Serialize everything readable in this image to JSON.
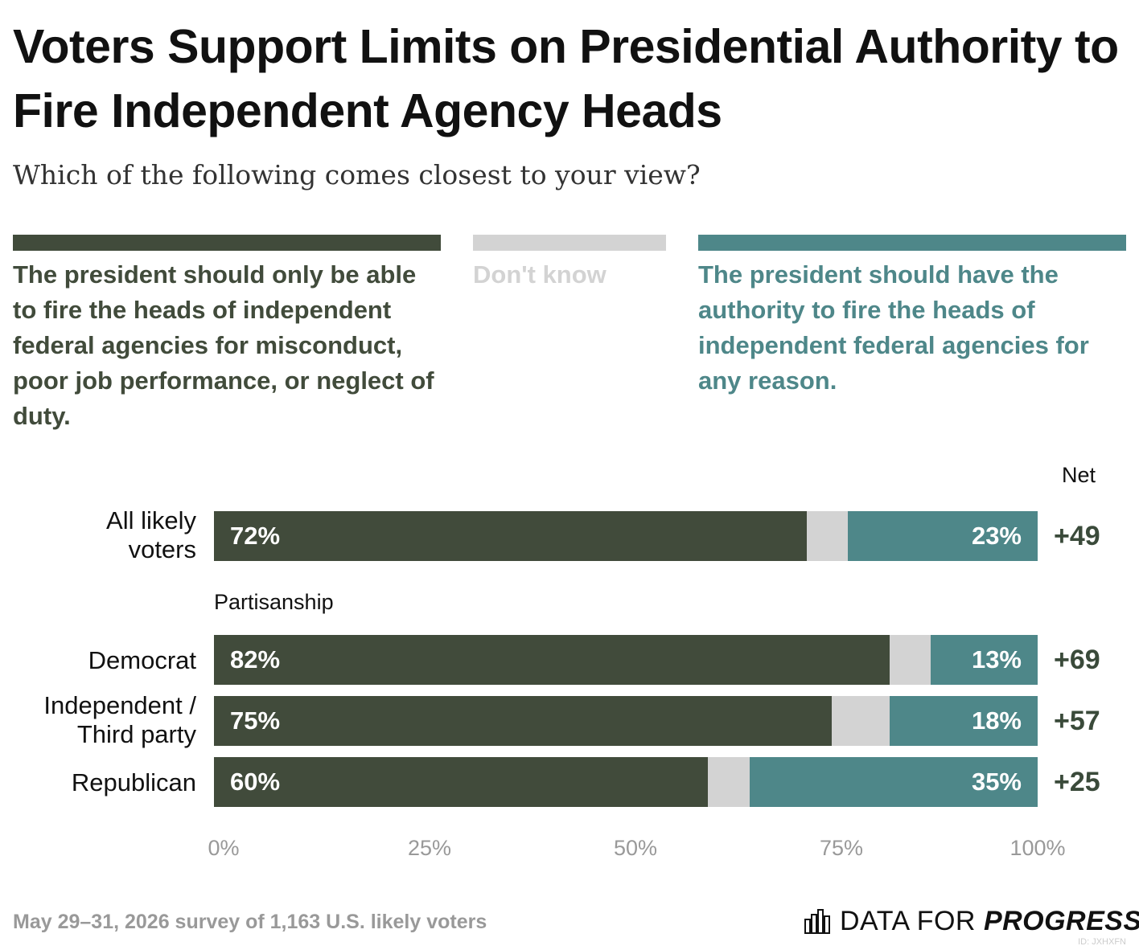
{
  "title": "Voters Support Limits on Presidential Authority to Fire Independent Agency Heads",
  "subtitle": "Which of the following comes closest to your view?",
  "footer": "May 29–31, 2026 survey of 1,163 U.S. likely voters",
  "brand": {
    "prefix": "DATA FOR",
    "suffix": "PROGRESS"
  },
  "id_tag": "ID: JXHXFN",
  "net_header": "Net",
  "section_label": "Partisanship",
  "colors": {
    "limit": "#414b3b",
    "dont_know": "#d3d3d3",
    "any_reason": "#4e8789"
  },
  "legend": [
    {
      "label": "The president should only be able to fire the heads of independent federal agencies for misconduct, poor job performance, or neglect of duty.",
      "color": "#414b3b"
    },
    {
      "label": "Don't know",
      "color": "#d3d3d3"
    },
    {
      "label": "The president should have the authority to fire the heads of independent federal agencies for any reason.",
      "color": "#4e8789"
    }
  ],
  "chart_data": {
    "type": "bar",
    "orientation": "horizontal",
    "stacked": true,
    "categories": [
      "All likely voters",
      "Democrat",
      "Independent / Third party",
      "Republican"
    ],
    "series": [
      {
        "name": "The president should only be able to fire the heads of independent federal agencies for misconduct, poor job performance, or neglect of duty.",
        "values": [
          72,
          82,
          75,
          60
        ],
        "color": "#414b3b"
      },
      {
        "name": "Don't know",
        "values": [
          5,
          5,
          7,
          5
        ],
        "color": "#d3d3d3"
      },
      {
        "name": "The president should have the authority to fire the heads of independent federal agencies for any reason.",
        "values": [
          23,
          13,
          18,
          35
        ],
        "color": "#4e8789"
      }
    ],
    "value_labels": {
      "first": [
        "72%",
        "82%",
        "75%",
        "60%"
      ],
      "last": [
        "23%",
        "13%",
        "18%",
        "35%"
      ]
    },
    "net": [
      "+49",
      "+69",
      "+57",
      "+25"
    ],
    "xlim": [
      0,
      100
    ],
    "xticks": [
      "0%",
      "25%",
      "50%",
      "75%",
      "100%"
    ],
    "legend_position": "top"
  }
}
